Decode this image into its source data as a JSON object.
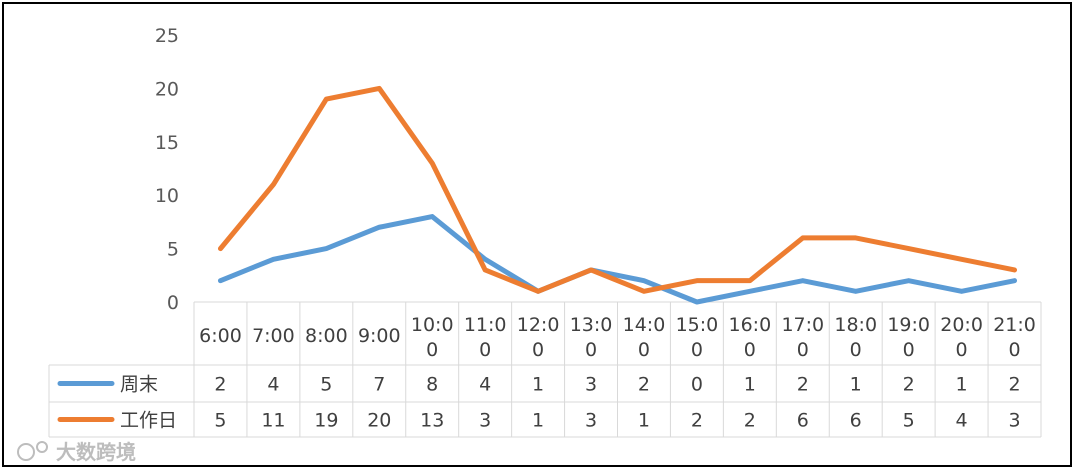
{
  "chart_data": {
    "type": "line",
    "categories": [
      "6:00",
      "7:00",
      "8:00",
      "9:00",
      "10:00",
      "11:00",
      "12:00",
      "13:00",
      "14:00",
      "15:00",
      "16:00",
      "17:00",
      "18:00",
      "19:00",
      "20:00",
      "21:00"
    ],
    "category_labels": [
      [
        "6:00"
      ],
      [
        "7:00"
      ],
      [
        "8:00"
      ],
      [
        "9:00"
      ],
      [
        "10:0",
        "0"
      ],
      [
        "11:0",
        "0"
      ],
      [
        "12:0",
        "0"
      ],
      [
        "13:0",
        "0"
      ],
      [
        "14:0",
        "0"
      ],
      [
        "15:0",
        "0"
      ],
      [
        "16:0",
        "0"
      ],
      [
        "17:0",
        "0"
      ],
      [
        "18:0",
        "0"
      ],
      [
        "19:0",
        "0"
      ],
      [
        "20:0",
        "0"
      ],
      [
        "21:0",
        "0"
      ]
    ],
    "series": [
      {
        "name": "周末",
        "color": "#5b9bd5",
        "values": [
          2,
          4,
          5,
          7,
          8,
          4,
          1,
          3,
          2,
          0,
          1,
          2,
          1,
          2,
          1,
          2
        ]
      },
      {
        "name": "工作日",
        "color": "#ed7d31",
        "values": [
          5,
          11,
          19,
          20,
          13,
          3,
          1,
          3,
          1,
          2,
          2,
          6,
          6,
          5,
          4,
          3
        ]
      }
    ],
    "ylim": [
      0,
      25
    ],
    "yticks": [
      "0",
      "5",
      "10",
      "15",
      "20",
      "25"
    ],
    "grid": false,
    "legend": "data-table"
  },
  "watermark": "大数跨境"
}
